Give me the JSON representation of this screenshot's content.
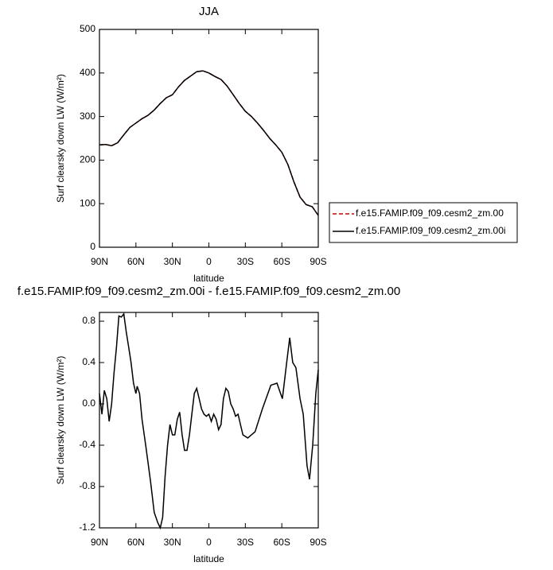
{
  "chart_data": [
    {
      "type": "line",
      "title": "JJA",
      "x_label": "latitude",
      "y_label": "Surf clearsky down LW (W/m²)",
      "x": [
        90,
        85,
        80,
        75,
        70,
        65,
        60,
        55,
        50,
        45,
        40,
        35,
        30,
        25,
        20,
        15,
        10,
        5,
        0,
        -5,
        -10,
        -15,
        -20,
        -25,
        -30,
        -35,
        -40,
        -45,
        -50,
        -55,
        -60,
        -65,
        -70,
        -75,
        -80,
        -85,
        -90
      ],
      "series": [
        {
          "name": "f.e15.FAMIP.f09_f09.cesm2_zm.00",
          "color": "#cc0000",
          "dashed": true,
          "values": [
            235,
            236,
            233,
            240,
            258,
            275,
            285,
            295,
            303,
            315,
            330,
            343,
            350,
            368,
            383,
            393,
            403,
            405,
            400,
            392,
            385,
            370,
            350,
            330,
            312,
            300,
            285,
            268,
            250,
            235,
            218,
            190,
            150,
            115,
            98,
            93,
            73
          ]
        },
        {
          "name": "f.e15.FAMIP.f09_f09.cesm2_zm.00i",
          "color": "#000000",
          "dashed": false,
          "values": [
            235,
            236,
            233,
            240,
            258,
            275,
            285,
            295,
            303,
            315,
            330,
            343,
            350,
            368,
            383,
            393,
            403,
            405,
            400,
            392,
            385,
            370,
            350,
            330,
            312,
            300,
            285,
            268,
            250,
            235,
            218,
            190,
            150,
            115,
            98,
            93,
            73
          ]
        }
      ],
      "xlim": [
        90,
        -90
      ],
      "xticks": [
        {
          "value": 90,
          "label": "90N"
        },
        {
          "value": 60,
          "label": "60N"
        },
        {
          "value": 30,
          "label": "30N"
        },
        {
          "value": 0,
          "label": "0"
        },
        {
          "value": -30,
          "label": "30S"
        },
        {
          "value": -60,
          "label": "60S"
        },
        {
          "value": -90,
          "label": "90S"
        }
      ],
      "ylim": [
        0,
        500
      ],
      "yticks": [
        0,
        100,
        200,
        300,
        400,
        500
      ],
      "legend": "right"
    },
    {
      "type": "line",
      "title": "f.e15.FAMIP.f09_f09.cesm2_zm.00i - f.e15.FAMIP.f09_f09.cesm2_zm.00",
      "x_label": "latitude",
      "y_label": "Surf clearsky down LW (W/m²)",
      "x": [
        90,
        88,
        86,
        84,
        82,
        80,
        78,
        76,
        74,
        72,
        70,
        68,
        66,
        64,
        62,
        60,
        59,
        57,
        55,
        52,
        48,
        45,
        42,
        40,
        38,
        36,
        34,
        32,
        30,
        28,
        26,
        24,
        22,
        20,
        18,
        16,
        14,
        12,
        10,
        8,
        6,
        4,
        2,
        0,
        -2,
        -4,
        -6,
        -8,
        -10,
        -12,
        -14,
        -16,
        -18,
        -20,
        -22,
        -24,
        -26,
        -28,
        -32,
        -38,
        -44,
        -51,
        -56,
        -59,
        -60.5,
        -64,
        -66.5,
        -69,
        -71.6,
        -75,
        -77.6,
        -80.8,
        -82.8,
        -85.4,
        -88,
        -90
      ],
      "values": [
        0.1,
        -0.1,
        0.13,
        0.05,
        -0.17,
        0.0,
        0.3,
        0.55,
        0.85,
        0.84,
        0.87,
        0.7,
        0.55,
        0.4,
        0.2,
        0.1,
        0.17,
        0.1,
        -0.15,
        -0.4,
        -0.75,
        -1.05,
        -1.15,
        -1.2,
        -1.1,
        -0.7,
        -0.4,
        -0.2,
        -0.3,
        -0.3,
        -0.15,
        -0.08,
        -0.3,
        -0.45,
        -0.45,
        -0.3,
        -0.1,
        0.1,
        0.15,
        0.05,
        -0.05,
        -0.1,
        -0.12,
        -0.1,
        -0.17,
        -0.1,
        -0.15,
        -0.25,
        -0.2,
        0.05,
        0.15,
        0.12,
        0.0,
        -0.05,
        -0.12,
        -0.1,
        -0.2,
        -0.3,
        -0.33,
        -0.27,
        -0.05,
        0.18,
        0.2,
        0.1,
        0.05,
        0.4,
        0.64,
        0.4,
        0.35,
        0.05,
        -0.1,
        -0.6,
        -0.73,
        -0.4,
        0.1,
        0.33
      ],
      "color": "#000000",
      "xlim": [
        90,
        -90
      ],
      "xticks": [
        {
          "value": 90,
          "label": "90N"
        },
        {
          "value": 60,
          "label": "60N"
        },
        {
          "value": 30,
          "label": "30N"
        },
        {
          "value": 0,
          "label": "0"
        },
        {
          "value": -30,
          "label": "30S"
        },
        {
          "value": -60,
          "label": "60S"
        },
        {
          "value": -90,
          "label": "90S"
        }
      ],
      "ylim": [
        -1.2,
        0.885
      ],
      "yticks": [
        -1.2,
        -0.8,
        -0.4,
        {
          "value": 0,
          "label": "0.0"
        },
        0.4,
        0.8
      ]
    }
  ]
}
